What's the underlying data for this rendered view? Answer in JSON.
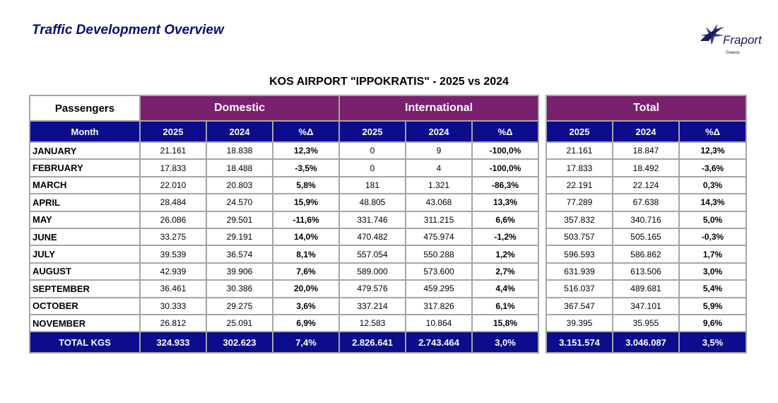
{
  "header": {
    "title": "Traffic Development Overview",
    "logo": "Fraport",
    "logo_sub": "Greece"
  },
  "subtitle": "KOS AIRPORT \"IPPOKRATIS\" - 2025 vs 2024",
  "table": {
    "corner": "Passengers",
    "groups": [
      "Domestic",
      "International",
      "Total"
    ],
    "columns": [
      "Month",
      "2025",
      "2024",
      "%Δ",
      "2025",
      "2024",
      "%Δ",
      "2025",
      "2024",
      "%Δ"
    ],
    "rows": [
      [
        "JANUARY",
        "21.161",
        "18.838",
        "12,3%",
        "0",
        "9",
        "-100,0%",
        "21.161",
        "18.847",
        "12,3%"
      ],
      [
        "FEBRUARY",
        "17.833",
        "18.488",
        "-3,5%",
        "0",
        "4",
        "-100,0%",
        "17.833",
        "18.492",
        "-3,6%"
      ],
      [
        "MARCH",
        "22.010",
        "20.803",
        "5,8%",
        "181",
        "1.321",
        "-86,3%",
        "22.191",
        "22.124",
        "0,3%"
      ],
      [
        "APRIL",
        "28.484",
        "24.570",
        "15,9%",
        "48.805",
        "43.068",
        "13,3%",
        "77.289",
        "67.638",
        "14,3%"
      ],
      [
        "MAY",
        "26.086",
        "29.501",
        "-11,6%",
        "331.746",
        "311.215",
        "6,6%",
        "357.832",
        "340.716",
        "5,0%"
      ],
      [
        "JUNE",
        "33.275",
        "29.191",
        "14,0%",
        "470.482",
        "475.974",
        "-1,2%",
        "503.757",
        "505.165",
        "-0,3%"
      ],
      [
        "JULY",
        "39.539",
        "36.574",
        "8,1%",
        "557.054",
        "550.288",
        "1,2%",
        "596.593",
        "586.862",
        "1,7%"
      ],
      [
        "AUGUST",
        "42.939",
        "39.906",
        "7,6%",
        "589.000",
        "573.600",
        "2,7%",
        "631.939",
        "613.506",
        "3,0%"
      ],
      [
        "SEPTEMBER",
        "36.461",
        "30.386",
        "20,0%",
        "479.576",
        "459.295",
        "4,4%",
        "516.037",
        "489.681",
        "5,4%"
      ],
      [
        "OCTOBER",
        "30.333",
        "29.275",
        "3,6%",
        "337.214",
        "317.826",
        "6,1%",
        "367.547",
        "347.101",
        "5,9%"
      ],
      [
        "NOVEMBER",
        "26.812",
        "25.091",
        "6,9%",
        "12.583",
        "10.864",
        "15,8%",
        "39.395",
        "35.955",
        "9,6%"
      ]
    ],
    "total": [
      "TOTAL KGS",
      "324.933",
      "302.623",
      "7,4%",
      "2.826.641",
      "2.743.464",
      "3,0%",
      "3.151.574",
      "3.046.087",
      "3,5%"
    ]
  }
}
